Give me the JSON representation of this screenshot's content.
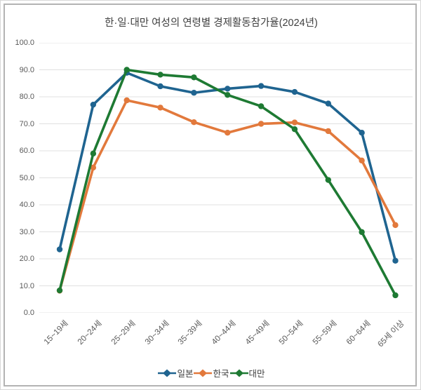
{
  "chart_data": {
    "type": "line",
    "title": "한·일·대만 여성의 연령별 경제활동참가율(2024년)",
    "categories": [
      "15~19세",
      "20~24세",
      "25~29세",
      "30~34세",
      "35~39세",
      "40~44세",
      "45~49세",
      "50~54세",
      "55~59세",
      "60~64세",
      "65세 이상"
    ],
    "series": [
      {
        "name": "일본",
        "color": "#1F6490",
        "values": [
          23.5,
          77.1,
          88.9,
          83.9,
          81.5,
          83.0,
          84.0,
          81.8,
          77.5,
          66.7,
          19.3
        ]
      },
      {
        "name": "한국",
        "color": "#E2793C",
        "values": [
          8.2,
          53.8,
          78.7,
          76.0,
          70.6,
          66.7,
          70.0,
          70.5,
          67.3,
          56.4,
          32.5
        ]
      },
      {
        "name": "대만",
        "color": "#1E7A33",
        "values": [
          8.3,
          59.0,
          90.0,
          88.2,
          87.2,
          80.7,
          76.5,
          68.0,
          49.2,
          29.9,
          6.5
        ]
      }
    ],
    "ylim": [
      0,
      100
    ],
    "ytick_step": 10,
    "ytick_labels": [
      "100.0",
      "90.0",
      "80.0",
      "70.0",
      "60.0",
      "50.0",
      "40.0",
      "30.0",
      "20.0",
      "10.0",
      "0.0"
    ],
    "grid": true,
    "legend_position": "bottom"
  },
  "styles": {
    "gridline_color": "#E0E0E0",
    "title_color": "#3F3F3F",
    "tick_color": "#595959",
    "frame_border_color": "#B3B3B3",
    "background": "#FFFFFF"
  }
}
